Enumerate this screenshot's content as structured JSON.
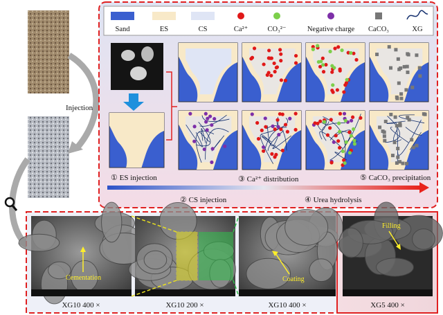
{
  "legend": [
    {
      "label": "Sand"
    },
    {
      "label": "ES"
    },
    {
      "label": "CS"
    },
    {
      "label": "Ca²⁺"
    },
    {
      "label": "CO₃²⁻"
    },
    {
      "label": "Negative charge"
    },
    {
      "label": "CaCO₃"
    },
    {
      "label": "XG"
    }
  ],
  "injection_label": "Injection",
  "steps": [
    "① ES injection",
    "② CS injection",
    "③ Ca²⁺ distribution",
    "④ Urea hydrolysis",
    "⑤ CaCO₃ precipitation"
  ],
  "sem_panels": [
    {
      "annotation": "Cementation",
      "caption": "XG10 400 ×"
    },
    {
      "caption": "XG10 200 ×"
    },
    {
      "annotation": "Coating",
      "caption": "XG10 400 ×"
    },
    {
      "annotation": "Filling",
      "caption": "XG5 400 ×"
    }
  ]
}
